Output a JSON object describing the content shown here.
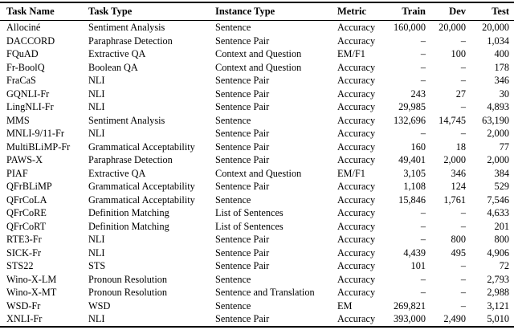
{
  "table": {
    "columns": [
      {
        "label": "Task Name",
        "align": "left"
      },
      {
        "label": "Task Type",
        "align": "left"
      },
      {
        "label": "Instance Type",
        "align": "left"
      },
      {
        "label": "Metric",
        "align": "left"
      },
      {
        "label": "Train",
        "align": "right"
      },
      {
        "label": "Dev",
        "align": "right"
      },
      {
        "label": "Test",
        "align": "right"
      }
    ],
    "rows": [
      [
        "Allociné",
        "Sentiment Analysis",
        "Sentence",
        "Accuracy",
        "160,000",
        "20,000",
        "20,000"
      ],
      [
        "DACCORD",
        "Paraphrase Detection",
        "Sentence Pair",
        "Accuracy",
        "–",
        "–",
        "1,034"
      ],
      [
        "FQuAD",
        "Extractive QA",
        "Context and Question",
        "EM/F1",
        "–",
        "100",
        "400"
      ],
      [
        "Fr-BoolQ",
        "Boolean QA",
        "Context and Question",
        "Accuracy",
        "–",
        "–",
        "178"
      ],
      [
        "FraCaS",
        "NLI",
        "Sentence Pair",
        "Accuracy",
        "–",
        "–",
        "346"
      ],
      [
        "GQNLI-Fr",
        "NLI",
        "Sentence Pair",
        "Accuracy",
        "243",
        "27",
        "30"
      ],
      [
        "LingNLI-Fr",
        "NLI",
        "Sentence Pair",
        "Accuracy",
        "29,985",
        "–",
        "4,893"
      ],
      [
        "MMS",
        "Sentiment Analysis",
        "Sentence",
        "Accuracy",
        "132,696",
        "14,745",
        "63,190"
      ],
      [
        "MNLI-9/11-Fr",
        "NLI",
        "Sentence Pair",
        "Accuracy",
        "–",
        "–",
        "2,000"
      ],
      [
        "MultiBLiMP-Fr",
        "Grammatical Acceptability",
        "Sentence Pair",
        "Accuracy",
        "160",
        "18",
        "77"
      ],
      [
        "PAWS-X",
        "Paraphrase Detection",
        "Sentence Pair",
        "Accuracy",
        "49,401",
        "2,000",
        "2,000"
      ],
      [
        "PIAF",
        "Extractive QA",
        "Context and Question",
        "EM/F1",
        "3,105",
        "346",
        "384"
      ],
      [
        "QFrBLiMP",
        "Grammatical Acceptability",
        "Sentence Pair",
        "Accuracy",
        "1,108",
        "124",
        "529"
      ],
      [
        "QFrCoLA",
        "Grammatical Acceptability",
        "Sentence",
        "Accuracy",
        "15,846",
        "1,761",
        "7,546"
      ],
      [
        "QFrCoRE",
        "Definition Matching",
        "List of Sentences",
        "Accuracy",
        "–",
        "–",
        "4,633"
      ],
      [
        "QFrCoRT",
        "Definition Matching",
        "List of Sentences",
        "Accuracy",
        "–",
        "–",
        "201"
      ],
      [
        "RTE3-Fr",
        "NLI",
        "Sentence Pair",
        "Accuracy",
        "–",
        "800",
        "800"
      ],
      [
        "SICK-Fr",
        "NLI",
        "Sentence Pair",
        "Accuracy",
        "4,439",
        "495",
        "4,906"
      ],
      [
        "STS22",
        "STS",
        "Sentence Pair",
        "Accuracy",
        "101",
        "–",
        "72"
      ],
      [
        "Wino-X-LM",
        "Pronoun Resolution",
        "Sentence",
        "Accuracy",
        "–",
        "–",
        "2,793"
      ],
      [
        "Wino-X-MT",
        "Pronoun Resolution",
        "Sentence and Translation",
        "Accuracy",
        "–",
        "–",
        "2,988"
      ],
      [
        "WSD-Fr",
        "WSD",
        "Sentence",
        "EM",
        "269,821",
        "–",
        "3,121"
      ],
      [
        "XNLI-Fr",
        "NLI",
        "Sentence Pair",
        "Accuracy",
        "393,000",
        "2,490",
        "5,010"
      ]
    ]
  }
}
